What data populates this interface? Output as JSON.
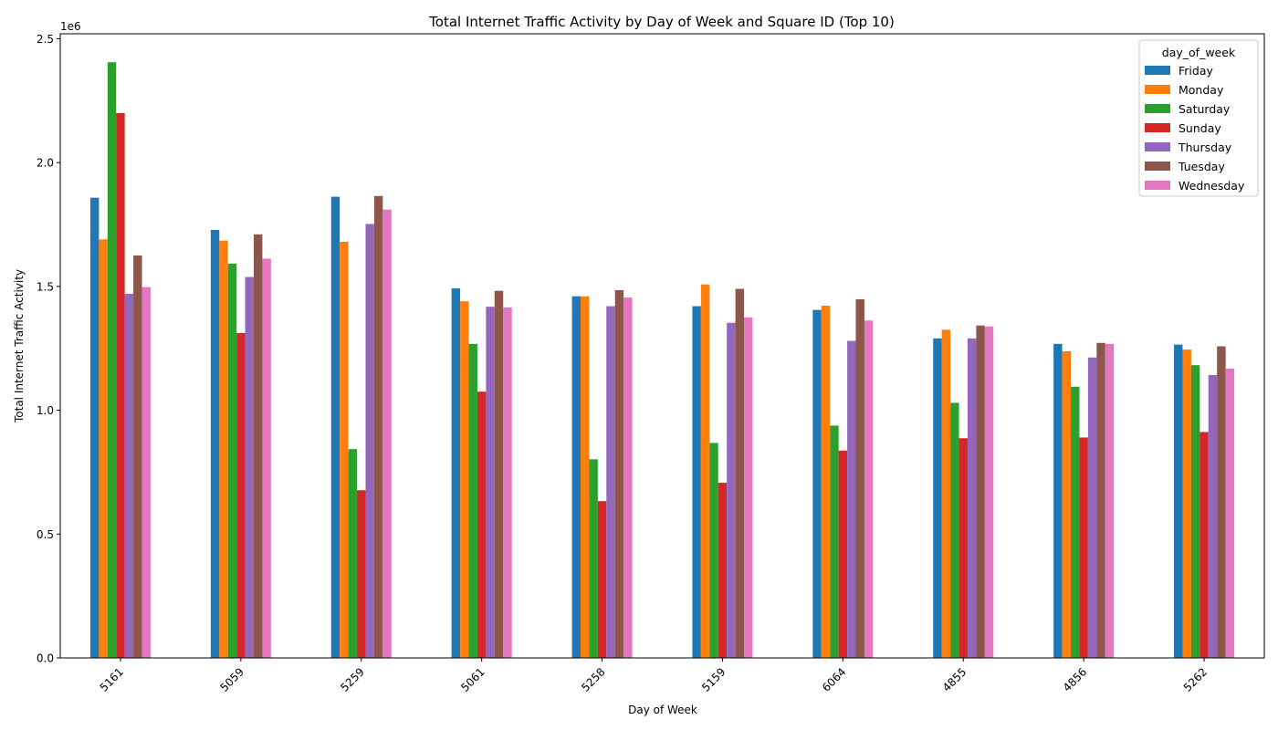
{
  "chart_data": {
    "type": "bar",
    "title": "Total Internet Traffic Activity by Day of Week and Square ID (Top 10)",
    "xlabel": "Day of Week",
    "ylabel": "Total Internet Traffic Activity",
    "y_offset_label": "1e6",
    "ylim": [
      0,
      2520000
    ],
    "yticks": [
      0,
      500000,
      1000000,
      1500000,
      2000000,
      2500000
    ],
    "ytick_labels": [
      "0.0",
      "0.5",
      "1.0",
      "1.5",
      "2.0",
      "2.5"
    ],
    "categories": [
      "5161",
      "5059",
      "5259",
      "5061",
      "5258",
      "5159",
      "6064",
      "4855",
      "4856",
      "5262"
    ],
    "legend": {
      "title": "day_of_week",
      "placement": "top-right"
    },
    "grid": false,
    "series": [
      {
        "name": "Friday",
        "color": "#1f77b4",
        "values": [
          1858000,
          1728000,
          1862000,
          1492000,
          1460000,
          1420000,
          1405000,
          1290000,
          1268000,
          1265000
        ]
      },
      {
        "name": "Monday",
        "color": "#ff7f0e",
        "values": [
          1690000,
          1685000,
          1680000,
          1440000,
          1460000,
          1508000,
          1422000,
          1325000,
          1238000,
          1245000
        ]
      },
      {
        "name": "Saturday",
        "color": "#2ca02c",
        "values": [
          2405000,
          1592000,
          843000,
          1268000,
          802000,
          868000,
          938000,
          1030000,
          1095000,
          1182000
        ]
      },
      {
        "name": "Sunday",
        "color": "#d62728",
        "values": [
          2200000,
          1312000,
          677000,
          1075000,
          633000,
          707000,
          837000,
          887000,
          890000,
          912000
        ]
      },
      {
        "name": "Thursday",
        "color": "#9467bd",
        "values": [
          1470000,
          1538000,
          1752000,
          1418000,
          1420000,
          1353000,
          1280000,
          1290000,
          1213000,
          1142000
        ]
      },
      {
        "name": "Tuesday",
        "color": "#8c564b",
        "values": [
          1625000,
          1710000,
          1865000,
          1482000,
          1485000,
          1490000,
          1448000,
          1342000,
          1272000,
          1258000
        ]
      },
      {
        "name": "Wednesday",
        "color": "#e377c2",
        "values": [
          1497000,
          1612000,
          1810000,
          1415000,
          1455000,
          1375000,
          1362000,
          1338000,
          1268000,
          1168000
        ]
      }
    ]
  }
}
